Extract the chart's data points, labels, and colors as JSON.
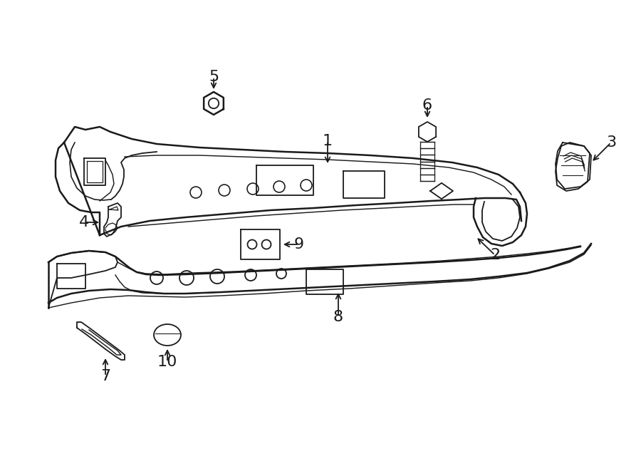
{
  "bg_color": "#ffffff",
  "line_color": "#1a1a1a",
  "lw": 1.3,
  "tlw": 1.8,
  "fig_width": 9.0,
  "fig_height": 6.61,
  "dpi": 100
}
